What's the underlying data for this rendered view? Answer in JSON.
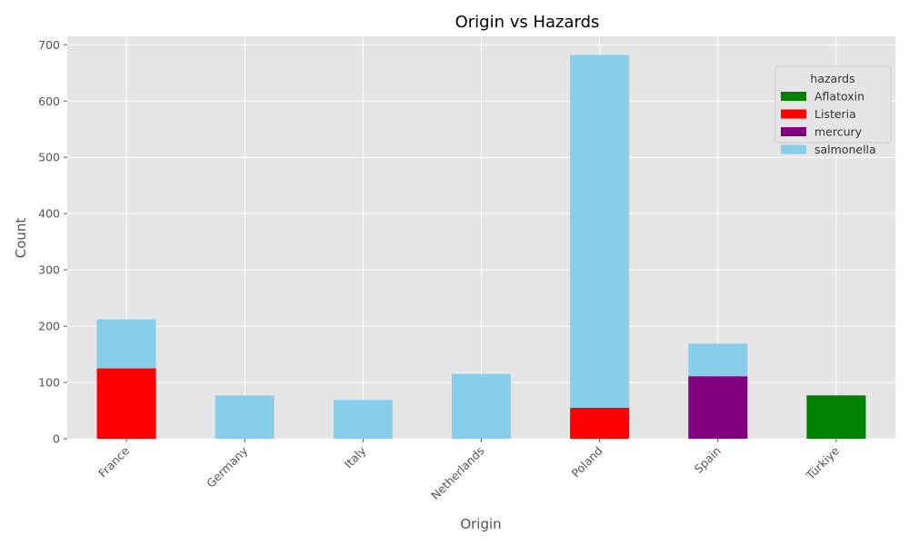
{
  "chart_data": {
    "type": "bar",
    "stacked": true,
    "title": "Origin vs Hazards",
    "xlabel": "Origin",
    "ylabel": "Count",
    "ylim": [
      0,
      715
    ],
    "yticks": [
      0,
      100,
      200,
      300,
      400,
      500,
      600,
      700
    ],
    "grid": true,
    "legend": {
      "title": "hazards",
      "placement": "top-right"
    },
    "categories": [
      "France",
      "Germany",
      "Italy",
      "Netherlands",
      "Poland",
      "Spain",
      "Türkiye"
    ],
    "series": [
      {
        "name": "Aflatoxin",
        "color": "#008000",
        "values": [
          0,
          0,
          0,
          0,
          0,
          0,
          77
        ]
      },
      {
        "name": "Listeria",
        "color": "#ff0000",
        "values": [
          125,
          0,
          0,
          0,
          55,
          0,
          0
        ]
      },
      {
        "name": "mercury",
        "color": "#800080",
        "values": [
          0,
          0,
          0,
          0,
          0,
          111,
          0
        ]
      },
      {
        "name": "salmonella",
        "color": "#87ceeb",
        "values": [
          87,
          77,
          69,
          115,
          627,
          58,
          0
        ]
      }
    ]
  }
}
